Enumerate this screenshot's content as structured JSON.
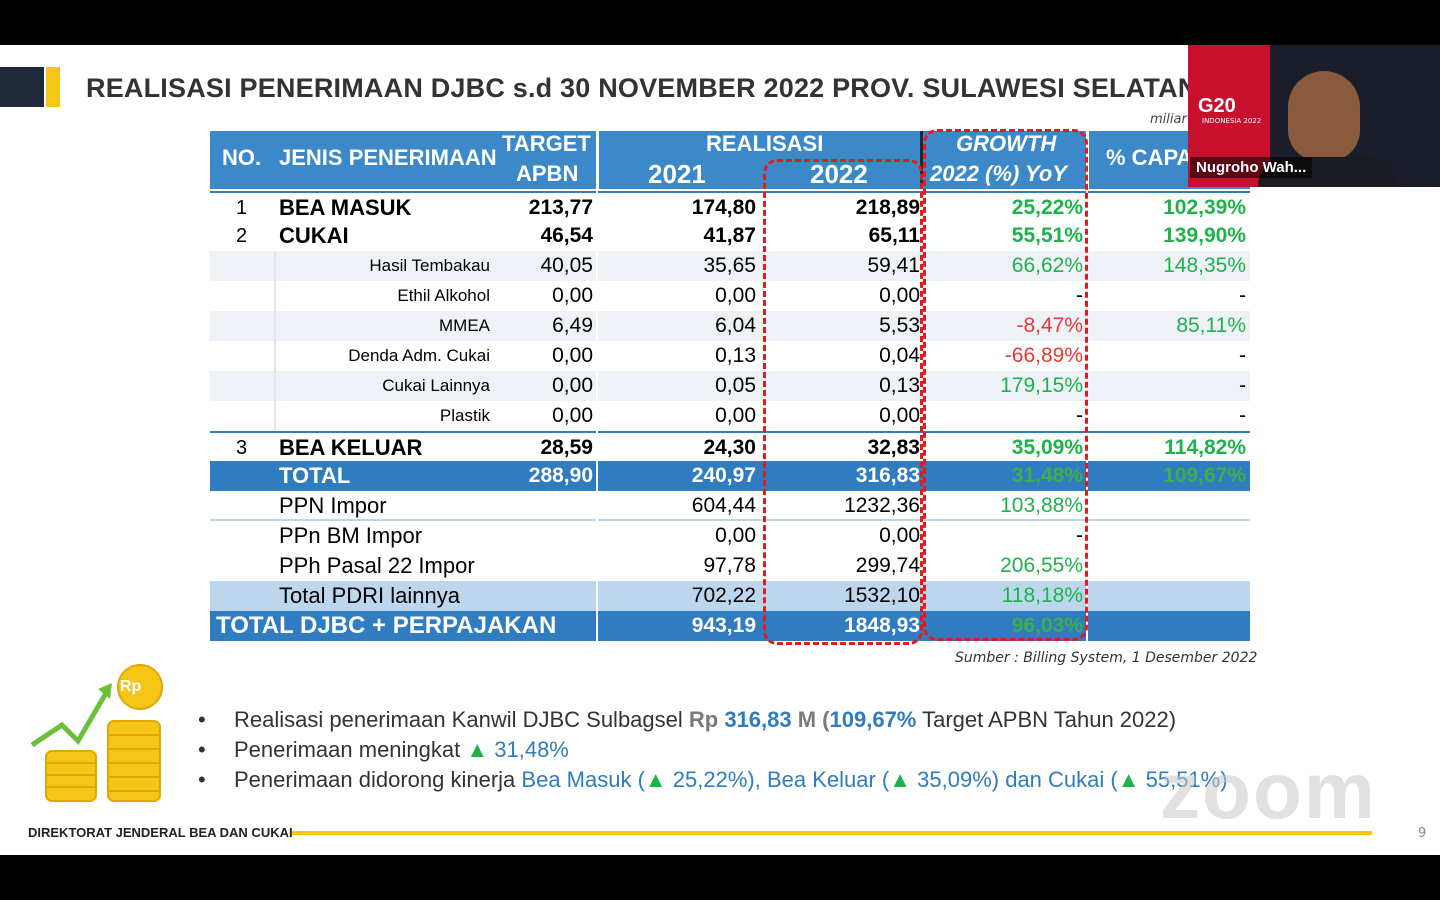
{
  "slide": {
    "title": "REALISASI PENERIMAAN DJBC s.d 30 NOVEMBER 2022 PROV. SULAWESI SELATAN",
    "unit_label": "miliar",
    "source": "Sumber :  Billing System, 1 Desember 2022",
    "footer": "DIREKTORAT JENDERAL  BEA DAN CUKAI",
    "page_number": "9",
    "coin_label": "Rp"
  },
  "table": {
    "headers": {
      "no": "NO.",
      "jenis": "JENIS PENERIMAAN",
      "target_1": "TARGET",
      "target_2": "APBN",
      "realisasi": "REALISASI",
      "y2021": "2021",
      "y2022": "2022",
      "growth_1": "GROWTH",
      "growth_2": "2022 (%) YoY",
      "capaian": "% CAPA"
    },
    "rows": [
      {
        "no": "1",
        "name": "BEA MASUK",
        "target": "213,77",
        "r2021": "174,80",
        "r2022": "218,89",
        "growth": "25,22%",
        "capaian": "102,39%"
      },
      {
        "no": "2",
        "name": "CUKAI",
        "target": "46,54",
        "r2021": "41,87",
        "r2022": "65,11",
        "growth": "55,51%",
        "capaian": "139,90%"
      },
      {
        "no": "",
        "name": "Hasil Tembakau",
        "target": "40,05",
        "r2021": "35,65",
        "r2022": "59,41",
        "growth": "66,62%",
        "capaian": "148,35%"
      },
      {
        "no": "",
        "name": "Ethil Alkohol",
        "target": "0,00",
        "r2021": "0,00",
        "r2022": "0,00",
        "growth": "-",
        "capaian": "-"
      },
      {
        "no": "",
        "name": "MMEA",
        "target": "6,49",
        "r2021": "6,04",
        "r2022": "5,53",
        "growth": "-8,47%",
        "capaian": "85,11%"
      },
      {
        "no": "",
        "name": "Denda Adm. Cukai",
        "target": "0,00",
        "r2021": "0,13",
        "r2022": "0,04",
        "growth": "-66,89%",
        "capaian": "-"
      },
      {
        "no": "",
        "name": "Cukai Lainnya",
        "target": "0,00",
        "r2021": "0,05",
        "r2022": "0,13",
        "growth": "179,15%",
        "capaian": "-"
      },
      {
        "no": "",
        "name": "Plastik",
        "target": "0,00",
        "r2021": "0,00",
        "r2022": "0,00",
        "growth": "-",
        "capaian": "-"
      },
      {
        "no": "3",
        "name": "BEA KELUAR",
        "target": "28,59",
        "r2021": "24,30",
        "r2022": "32,83",
        "growth": "35,09%",
        "capaian": "114,82%"
      },
      {
        "no": "",
        "name": "TOTAL",
        "target": "288,90",
        "r2021": "240,97",
        "r2022": "316,83",
        "growth": "31,48%",
        "capaian": "109,67%"
      },
      {
        "no": "",
        "name": "PPN Impor",
        "target": "",
        "r2021": "604,44",
        "r2022": "1232,36",
        "growth": "103,88%",
        "capaian": ""
      },
      {
        "no": "",
        "name": "PPn BM Impor",
        "target": "",
        "r2021": "0,00",
        "r2022": "0,00",
        "growth": "-",
        "capaian": ""
      },
      {
        "no": "",
        "name": "PPh Pasal 22 Impor",
        "target": "",
        "r2021": "97,78",
        "r2022": "299,74",
        "growth": "206,55%",
        "capaian": ""
      },
      {
        "no": "",
        "name": "Total PDRI lainnya",
        "target": "",
        "r2021": "702,22",
        "r2022": "1532,10",
        "growth": "118,18%",
        "capaian": ""
      },
      {
        "no": "",
        "name": "TOTAL DJBC + PERPAJAKAN",
        "target": "",
        "r2021": "943,19",
        "r2022": "1848,93",
        "growth": "96,03%",
        "capaian": ""
      }
    ]
  },
  "bullets": {
    "b1_a": "Realisasi penerimaan Kanwil DJBC Sulbagsel ",
    "b1_rp": "Rp",
    "b1_val": " 316,83 ",
    "b1_m": "M",
    "b1_c": " (",
    "b1_pct": "109,67%",
    "b1_d": " Target APBN Tahun 2022)",
    "b2_a": "Penerimaan meningkat ",
    "b2_tri": "▲",
    "b2_val": " 31,48%",
    "b3_a": "Penerimaan didorong kinerja ",
    "b3_b": "Bea Masuk (",
    "b3_tri1": "▲",
    "b3_c": " 25,22%), Bea Keluar (",
    "b3_tri2": "▲",
    "b3_d": " 35,09%) dan Cukai (",
    "b3_tri3": "▲",
    "b3_e": " 55,51%)",
    "bullet_char": "•"
  },
  "video": {
    "name": "Nugroho Wah...",
    "badge": "G20",
    "badge_sub": "INDONESIA 2022"
  },
  "overlay": {
    "watermark": "zoom"
  },
  "colors": {
    "header_blue": "#3c89c9",
    "total_blue": "#2f7cc0",
    "growth_green": "#1db34a",
    "negative_red": "#e53935",
    "accent_yellow": "#f5c518",
    "dashed_red": "#e21b1b"
  }
}
